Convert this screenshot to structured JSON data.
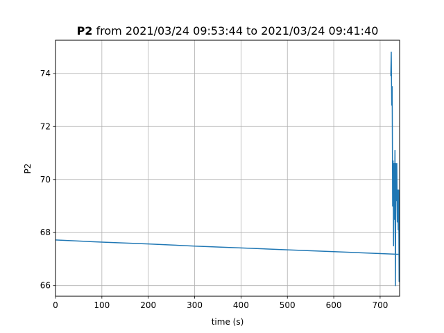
{
  "chart_data": {
    "type": "line",
    "title_bold": "P2",
    "title_rest": " from 2021/03/24 09:53:44 to 2021/03/24 09:41:40",
    "xlabel": "time (s)",
    "ylabel": "P2",
    "xlim": [
      0,
      742
    ],
    "ylim": [
      65.6,
      75.25
    ],
    "xticks": [
      0,
      100,
      200,
      300,
      400,
      500,
      600,
      700
    ],
    "yticks": [
      66,
      68,
      70,
      72,
      74
    ],
    "grid": true,
    "line_color": "#1f77b4",
    "series": [
      {
        "x": [
          0,
          100,
          200,
          300,
          400,
          500,
          600,
          700,
          742,
          741,
          740,
          739,
          738,
          737,
          736,
          735,
          734,
          733,
          732,
          731,
          730,
          729,
          728,
          727,
          726,
          725,
          724,
          723
        ],
        "y": [
          67.72,
          67.64,
          67.57,
          67.49,
          67.42,
          67.35,
          67.28,
          67.21,
          67.18,
          66.15,
          69.6,
          68.1,
          69.6,
          68.4,
          70.6,
          69.2,
          70.6,
          66.0,
          71.1,
          68.5,
          70.6,
          67.5,
          70.7,
          69.0,
          73.5,
          72.8,
          74.8,
          73.9
        ]
      }
    ]
  }
}
